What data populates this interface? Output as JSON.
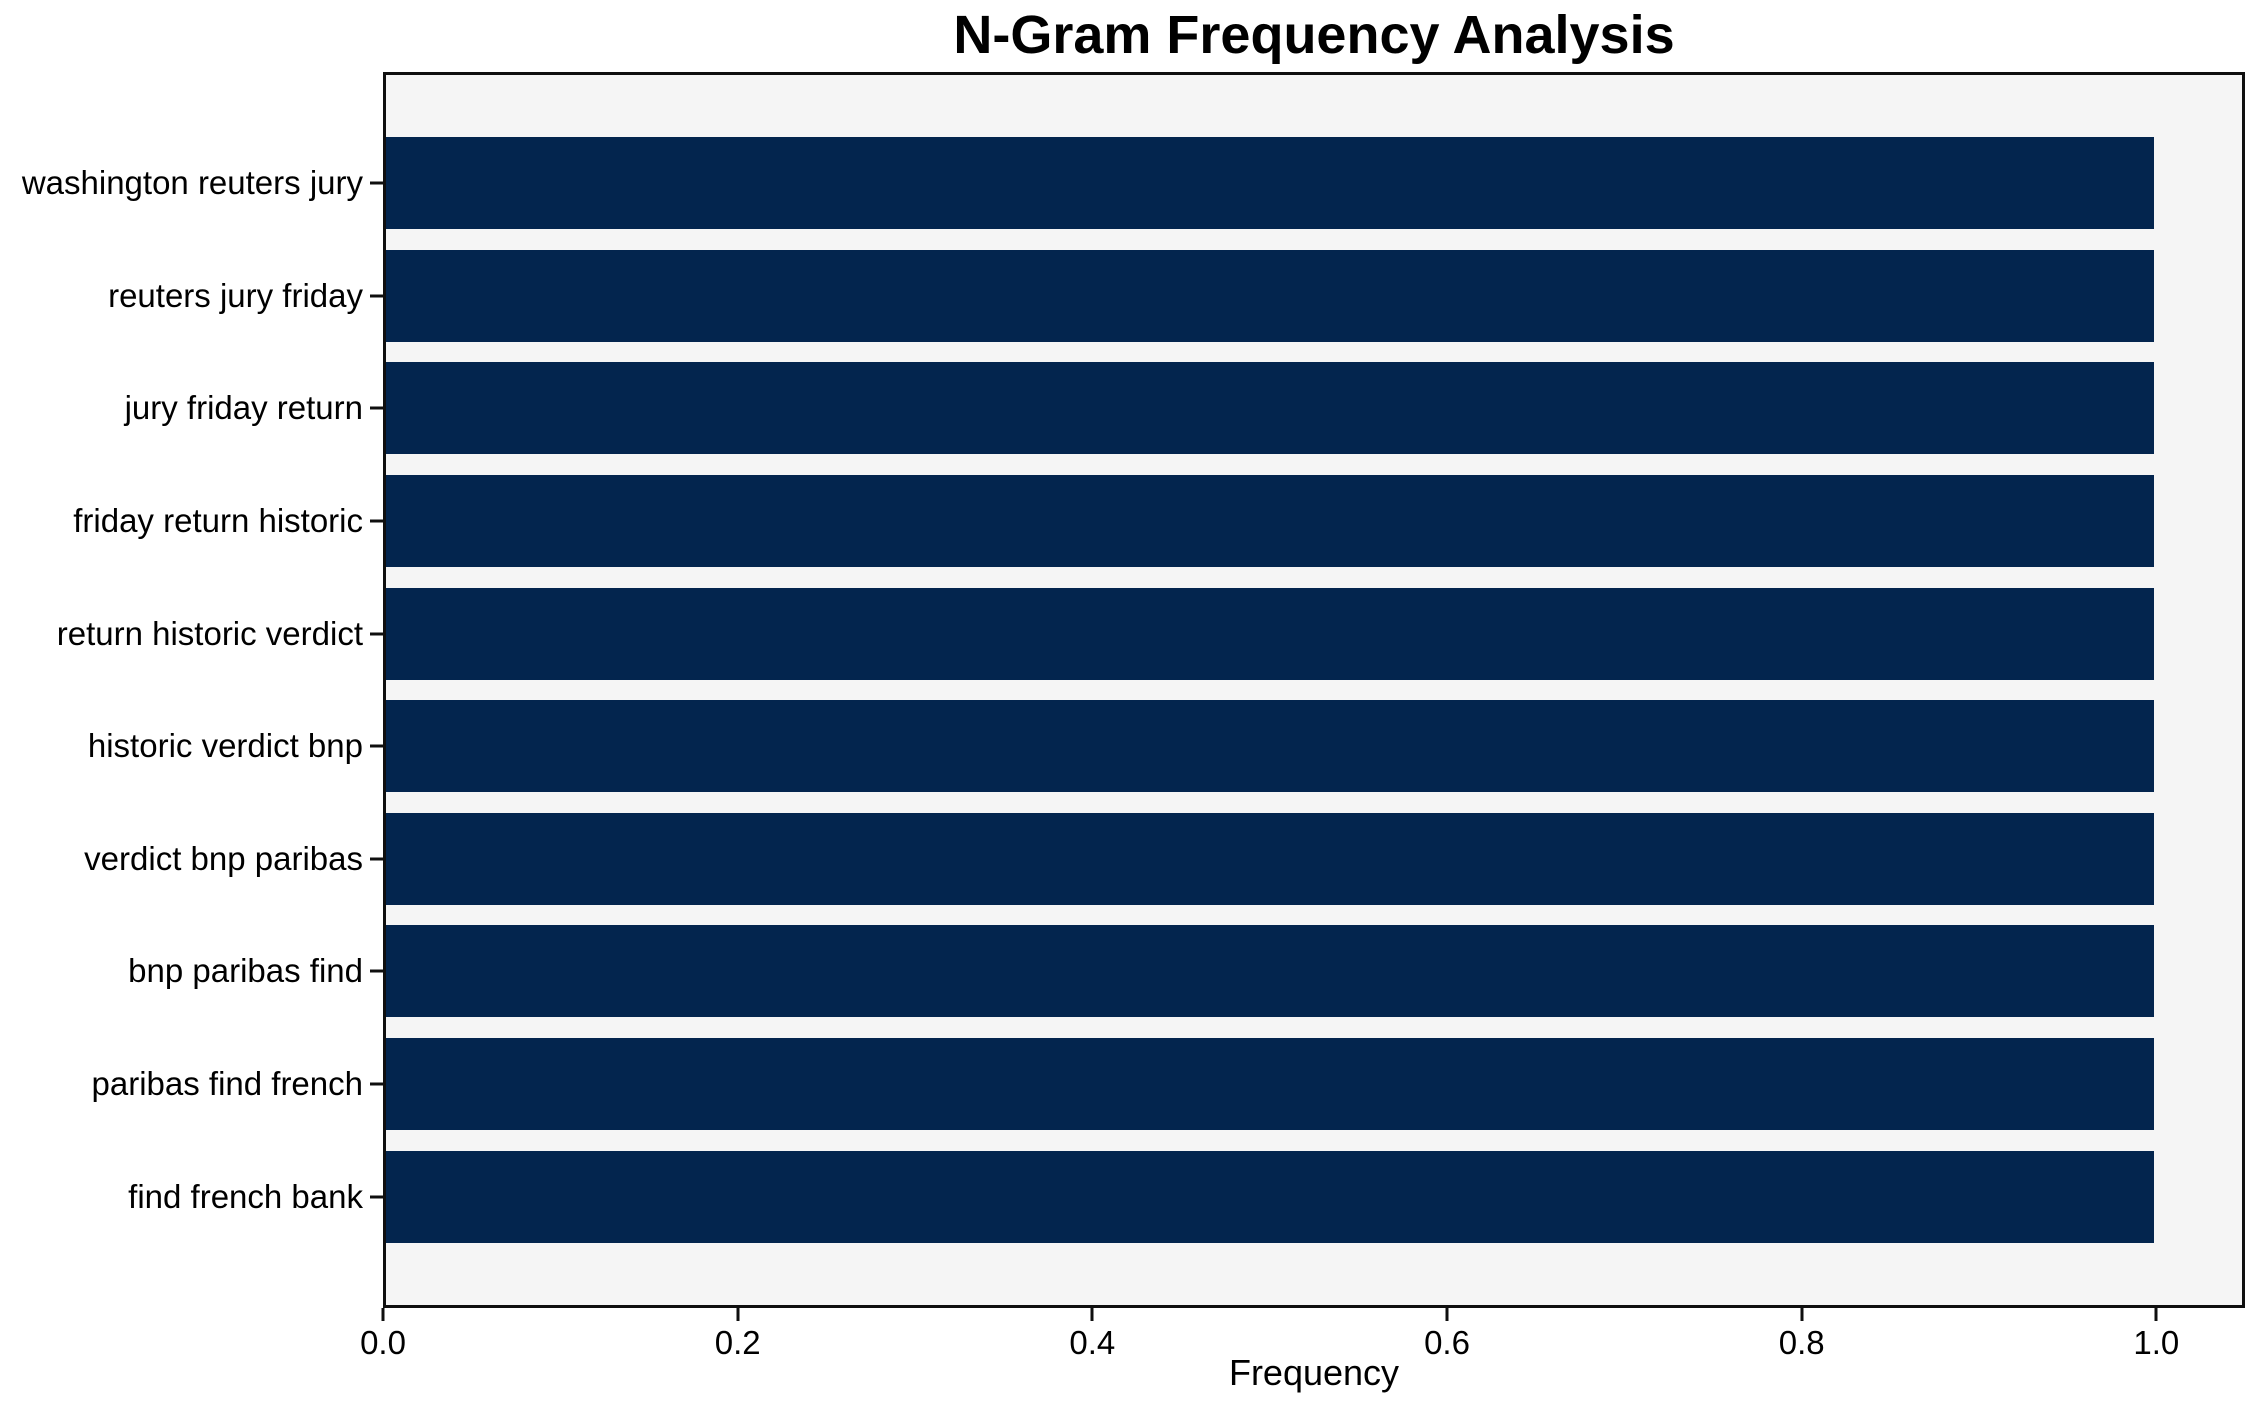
{
  "chart_data": {
    "type": "bar",
    "orientation": "horizontal",
    "title": "N-Gram Frequency Analysis",
    "xlabel": "Frequency",
    "ylabel": "",
    "categories": [
      "washington reuters jury",
      "reuters jury friday",
      "jury friday return",
      "friday return historic",
      "return historic verdict",
      "historic verdict bnp",
      "verdict bnp paribas",
      "bnp paribas find",
      "paribas find french",
      "find french bank"
    ],
    "values": [
      1.0,
      1.0,
      1.0,
      1.0,
      1.0,
      1.0,
      1.0,
      1.0,
      1.0,
      1.0
    ],
    "xlim": [
      0,
      1.05
    ],
    "xticks": [
      {
        "value": 0.0,
        "label": "0.0"
      },
      {
        "value": 0.2,
        "label": "0.2"
      },
      {
        "value": 0.4,
        "label": "0.4"
      },
      {
        "value": 0.6,
        "label": "0.6"
      },
      {
        "value": 0.8,
        "label": "0.8"
      },
      {
        "value": 1.0,
        "label": "1.0"
      }
    ],
    "grid": false,
    "legend": null,
    "colors": {
      "bar": "#03254e",
      "plot_background": "#f5f5f5",
      "figure_background": "#ffffff",
      "spine": "#0f0f0f",
      "text": "#000000"
    }
  }
}
